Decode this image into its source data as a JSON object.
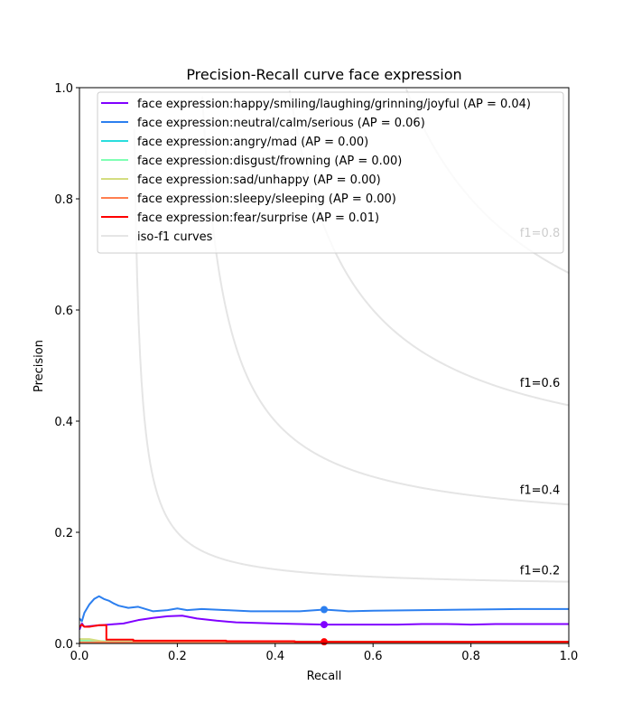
{
  "chart_data": {
    "type": "line",
    "title": "Precision-Recall curve face expression",
    "xlabel": "Recall",
    "ylabel": "Precision",
    "xlim": [
      0,
      1
    ],
    "ylim": [
      0,
      1
    ],
    "x_ticks": [
      "0.0",
      "0.2",
      "0.4",
      "0.6",
      "0.8",
      "1.0"
    ],
    "y_ticks": [
      "0.0",
      "0.2",
      "0.4",
      "0.6",
      "0.8",
      "1.0"
    ],
    "grid": false,
    "legend_position": "top-right",
    "series": [
      {
        "name": "face expression:happy/smiling/laughing/grinning/joyful (AP = 0.04)",
        "color": "#8000ff",
        "x": [
          0.0,
          0.005,
          0.01,
          0.03,
          0.06,
          0.09,
          0.12,
          0.15,
          0.18,
          0.21,
          0.24,
          0.28,
          0.32,
          0.36,
          0.4,
          0.45,
          0.5,
          0.55,
          0.6,
          0.65,
          0.7,
          0.75,
          0.8,
          0.85,
          0.9,
          0.95,
          1.0
        ],
        "y": [
          0.025,
          0.036,
          0.03,
          0.032,
          0.034,
          0.036,
          0.042,
          0.046,
          0.049,
          0.05,
          0.045,
          0.041,
          0.038,
          0.037,
          0.036,
          0.035,
          0.034,
          0.034,
          0.034,
          0.034,
          0.035,
          0.035,
          0.034,
          0.035,
          0.035,
          0.035,
          0.035
        ],
        "marker": {
          "x": 0.5,
          "y": 0.034
        }
      },
      {
        "name": "face expression:neutral/calm/serious (AP = 0.06)",
        "color": "#2c7fef",
        "x": [
          0.0,
          0.005,
          0.01,
          0.02,
          0.03,
          0.04,
          0.05,
          0.06,
          0.07,
          0.08,
          0.1,
          0.12,
          0.15,
          0.18,
          0.2,
          0.22,
          0.25,
          0.3,
          0.35,
          0.4,
          0.45,
          0.5,
          0.55,
          0.6,
          0.7,
          0.8,
          0.9,
          1.0
        ],
        "y": [
          0.045,
          0.04,
          0.055,
          0.07,
          0.08,
          0.085,
          0.08,
          0.077,
          0.072,
          0.068,
          0.064,
          0.066,
          0.058,
          0.06,
          0.063,
          0.06,
          0.062,
          0.06,
          0.058,
          0.058,
          0.058,
          0.061,
          0.058,
          0.059,
          0.06,
          0.061,
          0.062,
          0.062
        ],
        "marker": {
          "x": 0.5,
          "y": 0.061
        }
      },
      {
        "name": "face expression:angry/mad (AP = 0.00)",
        "color": "#2adddd",
        "x": [
          0.0,
          1.0
        ],
        "y": [
          0.003,
          0.003
        ]
      },
      {
        "name": "face expression:disgust/frowning (AP = 0.00)",
        "color": "#80ffb4",
        "x": [
          0.0,
          0.05,
          1.0
        ],
        "y": [
          0.005,
          0.004,
          0.003
        ]
      },
      {
        "name": "face expression:sad/unhappy (AP = 0.00)",
        "color": "#d4dd80",
        "x": [
          0.0,
          0.02,
          0.05,
          1.0
        ],
        "y": [
          0.008,
          0.008,
          0.003,
          0.002
        ]
      },
      {
        "name": "face expression:sleepy/sleeping (AP = 0.00)",
        "color": "#ff7f50",
        "x": [
          0.0,
          1.0
        ],
        "y": [
          0.002,
          0.002
        ]
      },
      {
        "name": "face expression:fear/surprise (AP = 0.01)",
        "color": "#ff0000",
        "x": [
          0.0,
          0.005,
          0.01,
          0.02,
          0.04,
          0.055,
          0.055,
          0.11,
          0.11,
          0.3,
          0.3,
          0.44,
          0.44,
          0.6,
          0.8,
          1.0
        ],
        "y": [
          0.03,
          0.034,
          0.03,
          0.03,
          0.033,
          0.033,
          0.007,
          0.007,
          0.005,
          0.005,
          0.004,
          0.004,
          0.003,
          0.003,
          0.003,
          0.003
        ],
        "marker": {
          "x": 0.5,
          "y": 0.003
        }
      }
    ],
    "iso_f1": {
      "legend": "iso-f1 curves",
      "color": "#e5e5e5",
      "values": [
        0.2,
        0.4,
        0.6,
        0.8
      ],
      "labels": [
        "f1=0.2",
        "f1=0.4",
        "f1=0.6",
        "f1=0.8"
      ]
    }
  }
}
